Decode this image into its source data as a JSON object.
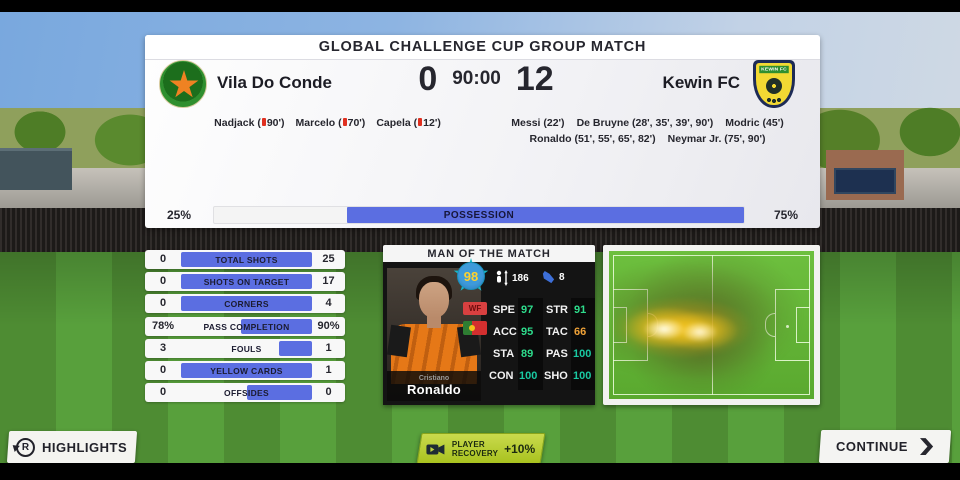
{
  "colors": {
    "accent_blue": "#5b6ee1",
    "lime_button": "#b5cc2e",
    "stat_green": "#2edc8c",
    "stat_orange": "#f0a238",
    "stat_teal": "#19c9a2",
    "red_card": "#e03020"
  },
  "scoreboard": {
    "title": "GLOBAL CHALLENGE CUP GROUP MATCH",
    "clock": "90:00",
    "home": {
      "name": "Vila Do Conde",
      "score": "0",
      "scorers": [
        {
          "pre": "Nadjack (",
          "post": "90')"
        },
        {
          "pre": "Marcelo (",
          "post": "70')"
        },
        {
          "pre": "Capela (",
          "post": "12')"
        }
      ]
    },
    "away": {
      "name": "Kewin FC",
      "badge_text": "KEWIN FC",
      "score": "12",
      "scorers_line1": [
        "Messi (22')",
        "De Bruyne (28', 35', 39', 90')",
        "Modric (45')"
      ],
      "scorers_line2": [
        "Ronaldo (51', 55', 65', 82')",
        "Neymar Jr. (75', 90')"
      ]
    }
  },
  "possession": {
    "home_value": "25%",
    "label": "POSSESSION",
    "away_value": "75%",
    "away_pct": 75
  },
  "stats": {
    "rows": [
      {
        "home": "0",
        "label": "TOTAL SHOTS",
        "away": "25",
        "away_fill_pct": 100
      },
      {
        "home": "0",
        "label": "SHOTS ON TARGET",
        "away": "17",
        "away_fill_pct": 100
      },
      {
        "home": "0",
        "label": "CORNERS",
        "away": "4",
        "away_fill_pct": 100
      },
      {
        "home": "78%",
        "label": "PASS COMPLETION",
        "away": "90%",
        "away_fill_pct": 54
      },
      {
        "home": "3",
        "label": "FOULS",
        "away": "1",
        "away_fill_pct": 25
      },
      {
        "home": "0",
        "label": "YELLOW CARDS",
        "away": "1",
        "away_fill_pct": 100
      },
      {
        "home": "0",
        "label": "OFFSIDES",
        "away": "0",
        "away_fill_pct": 50
      }
    ]
  },
  "motm": {
    "title": "MAN OF THE MATCH",
    "rating": "98",
    "height": "186",
    "boots": "8",
    "wf_badge": "WF",
    "first_name": "Cristiano",
    "last_name": "Ronaldo",
    "attributes": [
      {
        "label": "SPE",
        "value": "97"
      },
      {
        "label": "STR",
        "value": "91"
      },
      {
        "label": "ACC",
        "value": "95"
      },
      {
        "label": "TAC",
        "value": "66"
      },
      {
        "label": "STA",
        "value": "89"
      },
      {
        "label": "PAS",
        "value": "100"
      },
      {
        "label": "CON",
        "value": "100"
      },
      {
        "label": "SHO",
        "value": "100"
      }
    ]
  },
  "footer": {
    "highlights_label": "HIGHLIGHTS",
    "highlights_icon_letter": "R",
    "recovery_line1": "PLAYER",
    "recovery_line2": "RECOVERY",
    "recovery_bonus": "+10%",
    "continue_label": "CONTINUE"
  }
}
